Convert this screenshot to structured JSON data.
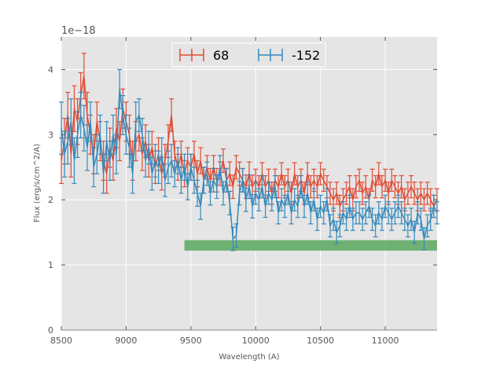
{
  "chart_data": {
    "type": "line",
    "title": "",
    "xlabel": "Wavelength (A)",
    "ylabel": "Flux (erg/s/cm^2/A)",
    "offset_text": "1e−18",
    "xlim": [
      8500,
      11400
    ],
    "ylim": [
      0,
      4.5
    ],
    "grid": true,
    "legend_position": "top-center",
    "x_ticks": [
      8500,
      9000,
      9500,
      10000,
      10500,
      11000
    ],
    "y_ticks": [
      0,
      1,
      2,
      3,
      4
    ],
    "band": {
      "x_start": 9450,
      "x_end": 11400,
      "y_low": 1.22,
      "y_high": 1.38,
      "color": "#59a85f"
    },
    "series": [
      {
        "name": "68",
        "color": "#e24a33",
        "x": [
          8500,
          8525,
          8550,
          8575,
          8600,
          8625,
          8650,
          8675,
          8700,
          8725,
          8750,
          8775,
          8800,
          8825,
          8850,
          8875,
          8900,
          8925,
          8950,
          8975,
          9000,
          9025,
          9050,
          9075,
          9100,
          9125,
          9150,
          9175,
          9200,
          9225,
          9250,
          9275,
          9300,
          9325,
          9350,
          9375,
          9400,
          9425,
          9450,
          9475,
          9500,
          9525,
          9550,
          9575,
          9600,
          9625,
          9650,
          9675,
          9700,
          9725,
          9750,
          9775,
          9800,
          9825,
          9850,
          9875,
          9900,
          9925,
          9950,
          9975,
          10000,
          10025,
          10050,
          10075,
          10100,
          10125,
          10150,
          10175,
          10200,
          10225,
          10250,
          10275,
          10300,
          10325,
          10350,
          10375,
          10400,
          10425,
          10450,
          10475,
          10500,
          10525,
          10550,
          10575,
          10600,
          10625,
          10650,
          10675,
          10700,
          10725,
          10750,
          10775,
          10800,
          10825,
          10850,
          10875,
          10900,
          10925,
          10950,
          10975,
          11000,
          11025,
          11050,
          11075,
          11100,
          11125,
          11150,
          11175,
          11200,
          11225,
          11250,
          11275,
          11300,
          11325,
          11350,
          11375,
          11400
        ],
        "y": [
          2.6,
          2.9,
          3.3,
          2.7,
          3.4,
          3.2,
          3.6,
          3.9,
          3.3,
          3.0,
          2.7,
          3.2,
          2.9,
          2.6,
          2.4,
          2.8,
          2.6,
          3.1,
          2.9,
          3.4,
          3.2,
          3.0,
          2.6,
          2.9,
          3.0,
          2.7,
          2.9,
          2.6,
          2.8,
          2.5,
          2.7,
          2.4,
          2.6,
          2.9,
          3.3,
          2.7,
          2.5,
          2.7,
          2.4,
          2.6,
          2.5,
          2.7,
          2.4,
          2.6,
          2.3,
          2.5,
          2.3,
          2.5,
          2.3,
          2.4,
          2.6,
          2.3,
          2.4,
          2.2,
          2.5,
          2.4,
          2.3,
          2.2,
          2.4,
          2.2,
          2.3,
          2.2,
          2.4,
          2.2,
          2.3,
          2.1,
          2.3,
          2.2,
          2.4,
          2.2,
          2.3,
          2.1,
          2.4,
          2.2,
          2.3,
          2.1,
          2.4,
          2.2,
          2.3,
          2.2,
          2.4,
          2.3,
          2.2,
          2.1,
          2.0,
          2.1,
          1.9,
          2.0,
          2.1,
          2.2,
          2.0,
          2.2,
          2.3,
          2.1,
          2.2,
          2.0,
          2.3,
          2.2,
          2.4,
          2.2,
          2.3,
          2.1,
          2.3,
          2.2,
          2.1,
          2.2,
          2.0,
          2.1,
          2.2,
          2.1,
          2.0,
          2.1,
          2.0,
          2.1,
          2.0,
          1.9,
          2.0
        ],
        "err": [
          0.35,
          0.35,
          0.35,
          0.35,
          0.35,
          0.35,
          0.35,
          0.35,
          0.35,
          0.3,
          0.3,
          0.3,
          0.3,
          0.3,
          0.3,
          0.3,
          0.3,
          0.3,
          0.3,
          0.3,
          0.3,
          0.3,
          0.3,
          0.3,
          0.25,
          0.25,
          0.25,
          0.25,
          0.25,
          0.25,
          0.25,
          0.25,
          0.25,
          0.25,
          0.25,
          0.2,
          0.2,
          0.2,
          0.2,
          0.2,
          0.2,
          0.2,
          0.2,
          0.2,
          0.2,
          0.18,
          0.18,
          0.18,
          0.18,
          0.18,
          0.18,
          0.18,
          0.18,
          0.18,
          0.18,
          0.18,
          0.18,
          0.18,
          0.18,
          0.18,
          0.17,
          0.17,
          0.17,
          0.17,
          0.17,
          0.17,
          0.17,
          0.17,
          0.17,
          0.17,
          0.17,
          0.17,
          0.17,
          0.17,
          0.17,
          0.17,
          0.17,
          0.17,
          0.17,
          0.17,
          0.17,
          0.17,
          0.17,
          0.17,
          0.17,
          0.17,
          0.17,
          0.17,
          0.17,
          0.17,
          0.17,
          0.17,
          0.17,
          0.17,
          0.17,
          0.17,
          0.17,
          0.17,
          0.17,
          0.17,
          0.17,
          0.17,
          0.17,
          0.17,
          0.17,
          0.17,
          0.17,
          0.17,
          0.17,
          0.17,
          0.17,
          0.17,
          0.17,
          0.17,
          0.17,
          0.17,
          0.17
        ]
      },
      {
        "name": "-152",
        "color": "#348abd",
        "x": [
          8500,
          8525,
          8550,
          8575,
          8600,
          8625,
          8650,
          8675,
          8700,
          8725,
          8750,
          8775,
          8800,
          8825,
          8850,
          8875,
          8900,
          8925,
          8950,
          8975,
          9000,
          9025,
          9050,
          9075,
          9100,
          9125,
          9150,
          9175,
          9200,
          9225,
          9250,
          9275,
          9300,
          9325,
          9350,
          9375,
          9400,
          9425,
          9450,
          9475,
          9500,
          9525,
          9550,
          9575,
          9600,
          9625,
          9650,
          9675,
          9700,
          9725,
          9750,
          9775,
          9800,
          9825,
          9850,
          9875,
          9900,
          9925,
          9950,
          9975,
          10000,
          10025,
          10050,
          10075,
          10100,
          10125,
          10150,
          10175,
          10200,
          10225,
          10250,
          10275,
          10300,
          10325,
          10350,
          10375,
          10400,
          10425,
          10450,
          10475,
          10500,
          10525,
          10550,
          10575,
          10600,
          10625,
          10650,
          10675,
          10700,
          10725,
          10750,
          10775,
          10800,
          10825,
          10850,
          10875,
          10900,
          10925,
          10950,
          10975,
          11000,
          11025,
          11050,
          11075,
          11100,
          11125,
          11150,
          11175,
          11200,
          11225,
          11250,
          11275,
          11300,
          11325,
          11350,
          11375,
          11400
        ],
        "y": [
          3.1,
          2.7,
          2.9,
          3.2,
          2.6,
          3.0,
          3.3,
          3.1,
          2.8,
          3.2,
          2.5,
          2.7,
          3.0,
          2.4,
          2.9,
          2.6,
          3.0,
          2.7,
          3.7,
          3.3,
          3.0,
          2.8,
          2.4,
          3.2,
          3.3,
          3.0,
          2.6,
          2.8,
          2.4,
          2.6,
          2.5,
          2.7,
          2.3,
          2.5,
          2.6,
          2.4,
          2.6,
          2.3,
          2.5,
          2.2,
          2.5,
          2.3,
          2.1,
          1.9,
          2.3,
          2.4,
          2.1,
          2.3,
          2.2,
          2.5,
          2.1,
          2.3,
          1.95,
          1.4,
          1.45,
          2.1,
          2.3,
          2.0,
          2.2,
          1.9,
          2.1,
          2.0,
          2.2,
          1.9,
          2.1,
          2.0,
          2.2,
          1.8,
          2.0,
          1.9,
          2.1,
          1.8,
          2.0,
          1.9,
          2.2,
          1.9,
          2.1,
          1.8,
          2.0,
          1.7,
          1.9,
          1.8,
          2.0,
          1.6,
          1.7,
          1.5,
          1.6,
          1.8,
          1.7,
          1.9,
          1.7,
          1.8,
          1.8,
          1.7,
          1.8,
          1.9,
          1.7,
          1.6,
          1.8,
          1.7,
          1.9,
          1.8,
          1.7,
          1.8,
          1.9,
          1.8,
          1.7,
          1.6,
          1.7,
          1.5,
          1.8,
          1.7,
          1.4,
          1.6,
          1.7,
          1.9,
          1.8
        ],
        "err": [
          0.4,
          0.35,
          0.35,
          0.35,
          0.35,
          0.35,
          0.35,
          0.35,
          0.35,
          0.3,
          0.3,
          0.3,
          0.3,
          0.3,
          0.3,
          0.3,
          0.3,
          0.3,
          0.3,
          0.3,
          0.3,
          0.3,
          0.3,
          0.3,
          0.25,
          0.25,
          0.25,
          0.25,
          0.25,
          0.25,
          0.25,
          0.25,
          0.25,
          0.25,
          0.25,
          0.2,
          0.2,
          0.2,
          0.2,
          0.2,
          0.2,
          0.2,
          0.2,
          0.2,
          0.2,
          0.18,
          0.18,
          0.18,
          0.18,
          0.18,
          0.18,
          0.18,
          0.18,
          0.18,
          0.18,
          0.18,
          0.18,
          0.18,
          0.18,
          0.18,
          0.17,
          0.17,
          0.17,
          0.17,
          0.17,
          0.17,
          0.17,
          0.17,
          0.17,
          0.17,
          0.17,
          0.17,
          0.17,
          0.17,
          0.17,
          0.17,
          0.17,
          0.17,
          0.17,
          0.17,
          0.17,
          0.17,
          0.17,
          0.17,
          0.17,
          0.17,
          0.17,
          0.17,
          0.17,
          0.17,
          0.17,
          0.17,
          0.17,
          0.17,
          0.17,
          0.17,
          0.17,
          0.17,
          0.17,
          0.17,
          0.17,
          0.17,
          0.17,
          0.17,
          0.17,
          0.17,
          0.17,
          0.17,
          0.17,
          0.17,
          0.17,
          0.17,
          0.17,
          0.17,
          0.17,
          0.17,
          0.17
        ]
      }
    ]
  }
}
